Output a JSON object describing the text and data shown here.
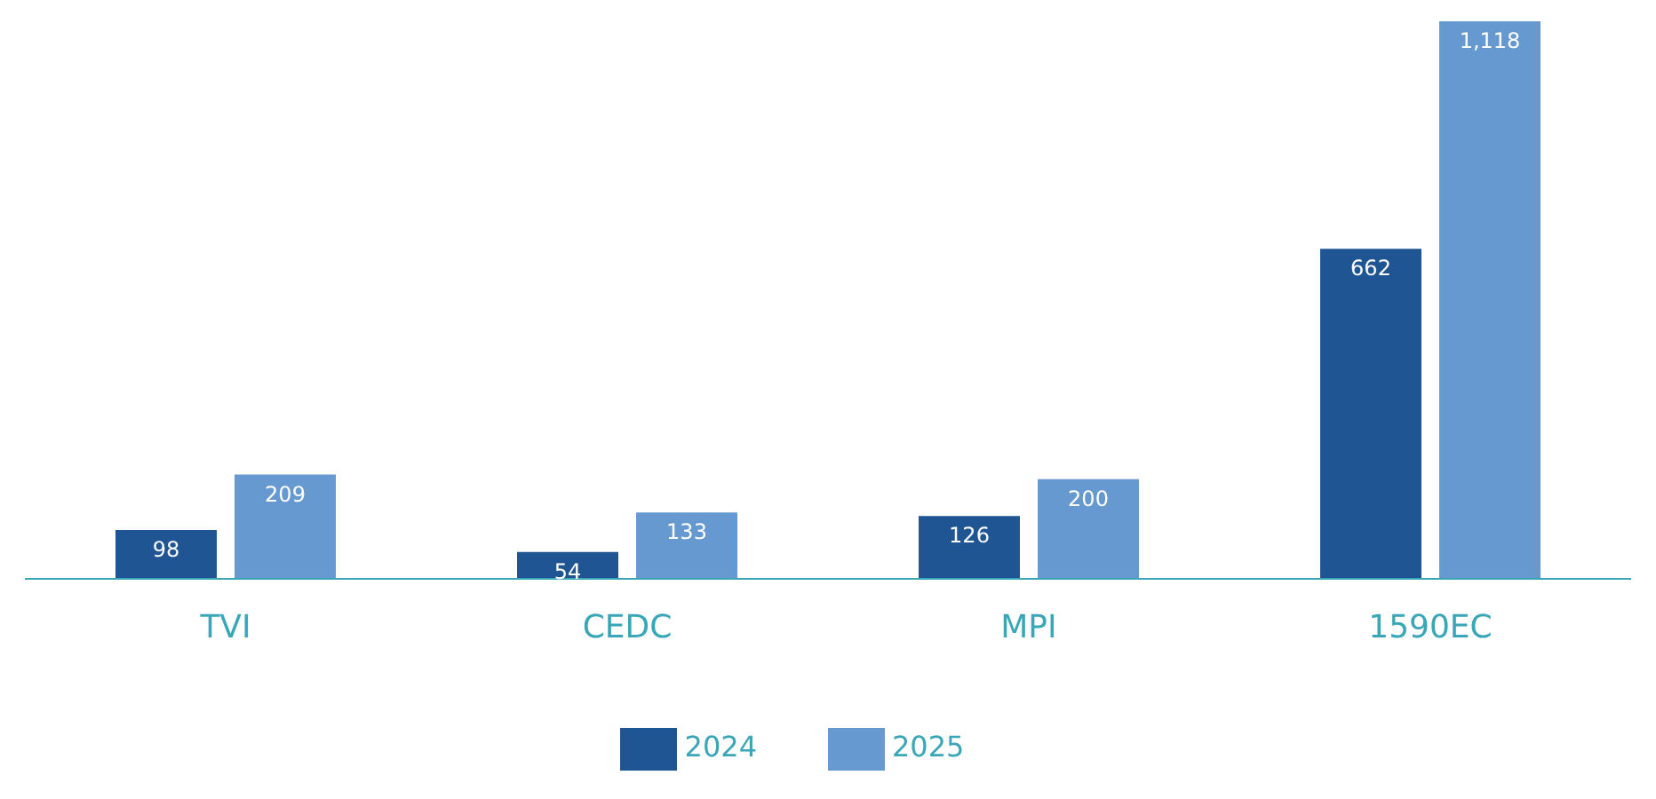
{
  "chart_data": {
    "type": "bar",
    "categories": [
      "TVI",
      "CEDC",
      "MPI",
      "1590EC"
    ],
    "series": [
      {
        "name": "2024",
        "color": "#1f5593",
        "values": [
          98,
          54,
          126,
          662
        ],
        "value_labels": [
          "98",
          "54",
          "126",
          "662"
        ]
      },
      {
        "name": "2025",
        "color": "#6699d0",
        "values": [
          209,
          133,
          200,
          1118
        ],
        "value_labels": [
          "209",
          "133",
          "200",
          "1,118"
        ]
      }
    ],
    "legend": "bottom",
    "grid": false,
    "tick_labels": "x"
  }
}
